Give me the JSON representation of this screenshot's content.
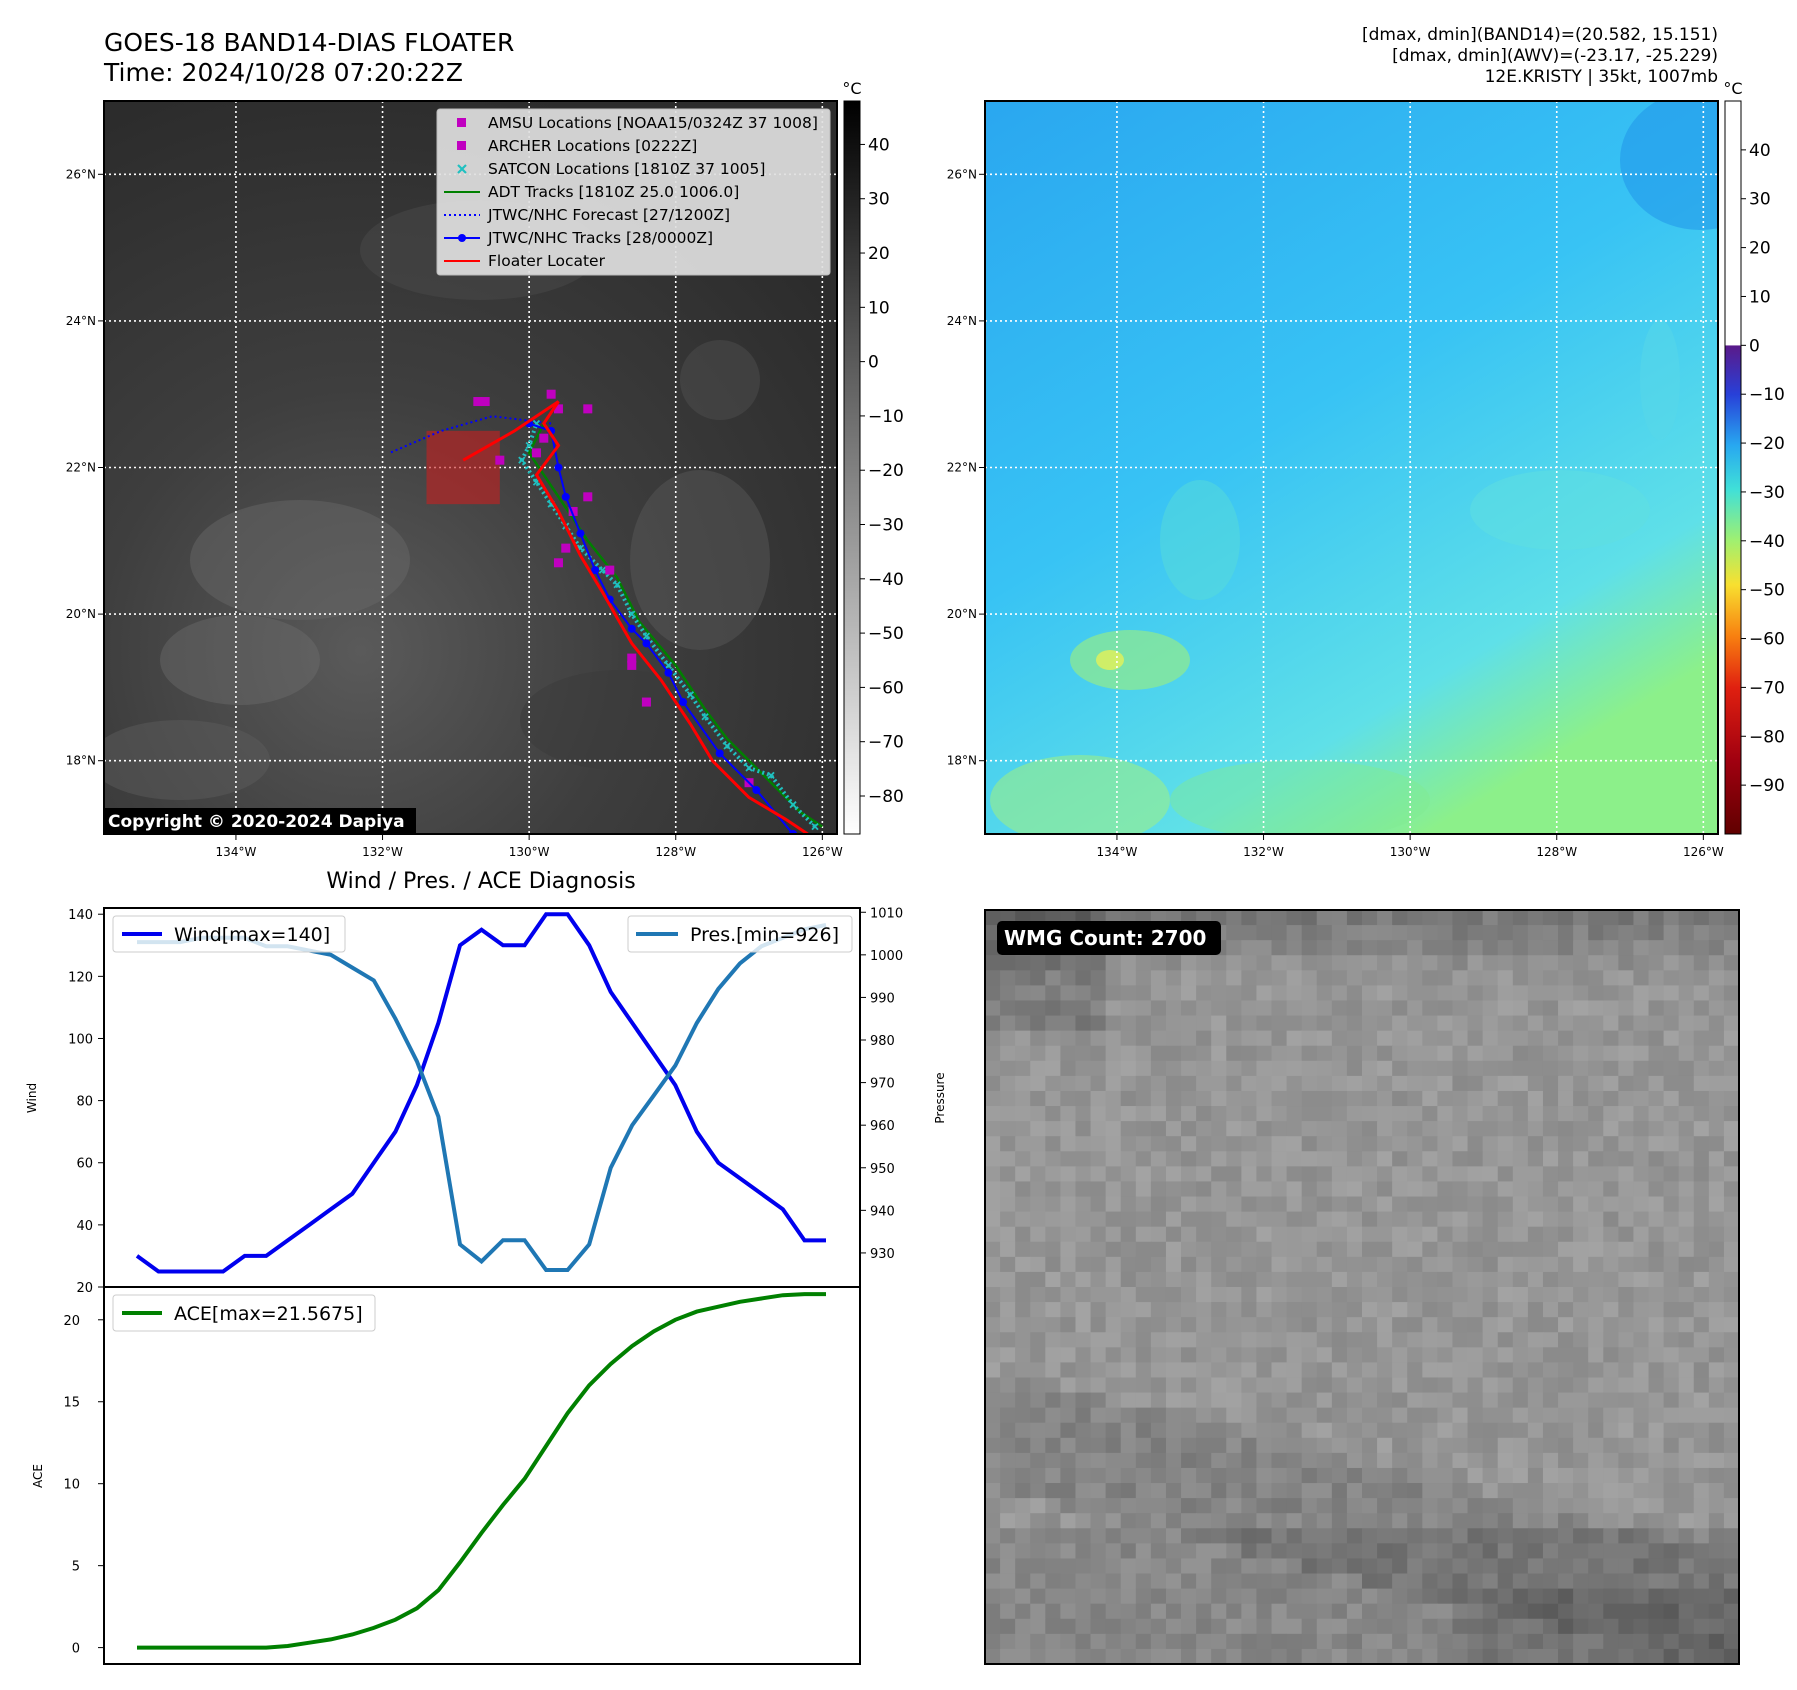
{
  "header": {
    "title_line1": "GOES-18 BAND14-DIAS FLOATER",
    "title_line2": "Time: 2024/10/28 07:20:22Z",
    "info_line1": "[dmax, dmin](BAND14)=(20.582, 15.151)",
    "info_line2": "[dmax, dmin](AWV)=(-23.17, -25.229)",
    "info_line3": "12E.KRISTY | 35kt, 1007mb"
  },
  "map": {
    "lon_ticks": [
      "134°W",
      "132°W",
      "130°W",
      "128°W",
      "126°W"
    ],
    "lon_values": [
      -134,
      -132,
      -130,
      -128,
      -126
    ],
    "lat_ticks": [
      "26°N",
      "24°N",
      "22°N",
      "20°N",
      "18°N"
    ],
    "lat_values": [
      26,
      24,
      22,
      20,
      18
    ],
    "lon_range": [
      -135.8,
      -125.8
    ],
    "lat_range": [
      17.0,
      27.0
    ],
    "copyright": "Copyright © 2020-2024 Dapiya"
  },
  "colorbar_ir": {
    "unit": "°C",
    "ticks": [
      "40",
      "30",
      "20",
      "10",
      "0",
      "−10",
      "−20",
      "−30",
      "−40",
      "−50",
      "−60",
      "−70",
      "−80"
    ],
    "tick_values": [
      40,
      30,
      20,
      10,
      0,
      -10,
      -20,
      -30,
      -40,
      -50,
      -60,
      -70,
      -80
    ],
    "range": [
      -87,
      48
    ]
  },
  "colorbar_wv": {
    "unit": "°C",
    "ticks": [
      "40",
      "30",
      "20",
      "10",
      "0",
      "−10",
      "−20",
      "−30",
      "−40",
      "−50",
      "−60",
      "−70",
      "−80",
      "−90"
    ],
    "tick_values": [
      40,
      30,
      20,
      10,
      0,
      -10,
      -20,
      -30,
      -40,
      -50,
      -60,
      -70,
      -80,
      -90
    ],
    "range": [
      -100,
      50
    ]
  },
  "legend": {
    "items": [
      {
        "label": "AMSU Locations [NOAA15/0324Z 37 1008]",
        "kind": "square",
        "color": "#c000c0"
      },
      {
        "label": "ARCHER Locations [0222Z]",
        "kind": "square",
        "color": "#c000c0"
      },
      {
        "label": "SATCON Locations [1810Z 37 1005]",
        "kind": "x",
        "color": "#20c0c0"
      },
      {
        "label": "ADT Tracks [1810Z 25.0 1006.0]",
        "kind": "line",
        "color": "#008000"
      },
      {
        "label": "JTWC/NHC Forecast [27/1200Z]",
        "kind": "dotted",
        "color": "#0000ff"
      },
      {
        "label": "JTWC/NHC Tracks [28/0000Z]",
        "kind": "line-dot",
        "color": "#0000ff"
      },
      {
        "label": "Floater Locater",
        "kind": "line",
        "color": "#ff0000"
      }
    ]
  },
  "tracks": {
    "jtwc_track": [
      [
        -126.4,
        17.0
      ],
      [
        -126.9,
        17.6
      ],
      [
        -127.4,
        18.1
      ],
      [
        -127.9,
        18.8
      ],
      [
        -128.1,
        19.2
      ],
      [
        -128.4,
        19.6
      ],
      [
        -128.6,
        19.8
      ],
      [
        -128.9,
        20.2
      ],
      [
        -129.1,
        20.6
      ],
      [
        -129.3,
        21.1
      ],
      [
        -129.5,
        21.6
      ],
      [
        -129.6,
        22.0
      ],
      [
        -129.7,
        22.5
      ],
      [
        -130.0,
        22.6
      ]
    ],
    "jtwc_forecast": [
      [
        -129.7,
        22.6
      ],
      [
        -130.5,
        22.7
      ],
      [
        -131.2,
        22.5
      ],
      [
        -131.9,
        22.2
      ]
    ],
    "floater_track": [
      [
        -126.2,
        17.0
      ],
      [
        -126.5,
        17.2
      ],
      [
        -127.0,
        17.5
      ],
      [
        -127.5,
        18.0
      ],
      [
        -127.8,
        18.5
      ],
      [
        -128.2,
        19.1
      ],
      [
        -128.6,
        19.6
      ],
      [
        -129.0,
        20.3
      ],
      [
        -129.3,
        20.8
      ],
      [
        -129.6,
        21.4
      ],
      [
        -129.9,
        21.9
      ],
      [
        -129.6,
        22.3
      ],
      [
        -129.8,
        22.6
      ],
      [
        -129.6,
        22.9
      ],
      [
        -130.2,
        22.5
      ],
      [
        -130.9,
        22.1
      ]
    ],
    "adt_track": [
      [
        -126.0,
        17.1
      ],
      [
        -126.3,
        17.3
      ],
      [
        -126.8,
        17.8
      ],
      [
        -127.3,
        18.3
      ],
      [
        -127.6,
        18.7
      ],
      [
        -128.0,
        19.3
      ],
      [
        -128.5,
        19.9
      ],
      [
        -128.8,
        20.5
      ],
      [
        -129.2,
        21.0
      ],
      [
        -129.6,
        21.6
      ],
      [
        -130.0,
        22.2
      ],
      [
        -129.8,
        22.6
      ]
    ],
    "satcon_points": [
      [
        -126.1,
        17.1
      ],
      [
        -126.4,
        17.4
      ],
      [
        -126.7,
        17.8
      ],
      [
        -127.0,
        17.9
      ],
      [
        -127.3,
        18.2
      ],
      [
        -127.6,
        18.6
      ],
      [
        -127.8,
        18.9
      ],
      [
        -128.1,
        19.3
      ],
      [
        -128.4,
        19.7
      ],
      [
        -128.6,
        20.0
      ],
      [
        -128.8,
        20.4
      ],
      [
        -129.0,
        20.6
      ],
      [
        -129.3,
        20.9
      ],
      [
        -129.5,
        21.2
      ],
      [
        -129.7,
        21.5
      ],
      [
        -129.9,
        21.8
      ],
      [
        -130.1,
        22.1
      ],
      [
        -130.0,
        22.3
      ],
      [
        -129.9,
        22.6
      ]
    ],
    "archer_points": [
      [
        -130.7,
        22.9
      ],
      [
        -130.6,
        22.9
      ],
      [
        -129.7,
        23.0
      ],
      [
        -129.6,
        22.8
      ],
      [
        -129.2,
        22.8
      ],
      [
        -129.8,
        22.4
      ],
      [
        -129.9,
        22.2
      ],
      [
        -130.4,
        22.1
      ],
      [
        -129.4,
        21.4
      ],
      [
        -129.2,
        21.6
      ],
      [
        -129.6,
        20.7
      ],
      [
        -129.5,
        20.9
      ],
      [
        -128.9,
        20.6
      ],
      [
        -128.6,
        19.4
      ],
      [
        -128.6,
        19.3
      ],
      [
        -128.4,
        18.8
      ],
      [
        -127.0,
        17.7
      ]
    ],
    "floater_box": {
      "lon": [
        -131.4,
        -130.4
      ],
      "lat": [
        21.5,
        22.5
      ]
    }
  },
  "diag": {
    "title": "Wind / Pres. / ACE Diagnosis",
    "wind_ylabel": "Wind",
    "pres_ylabel": "Pressure",
    "ace_ylabel": "ACE",
    "wind_legend": "Wind[max=140]",
    "pres_legend": "Pres.[min=926]",
    "ace_legend": "ACE[max=21.5675]",
    "wind_ticks": [
      20,
      40,
      60,
      80,
      100,
      120,
      140
    ],
    "pres_ticks": [
      930,
      940,
      950,
      960,
      970,
      980,
      990,
      1000,
      1010
    ],
    "ace_ticks": [
      0,
      5,
      10,
      15,
      20
    ],
    "wind_color": "#0000ee",
    "pres_color": "#1f77b4",
    "ace_color": "#008000"
  },
  "chart_data": [
    {
      "type": "line",
      "y_axis_left": "Wind",
      "y_axis_right": "Pressure",
      "ylim": [
        20,
        142
      ],
      "ylim_right": [
        922,
        1011
      ],
      "series": [
        {
          "name": "Wind[max=140]",
          "axis": "left",
          "values": [
            30,
            25,
            25,
            25,
            25,
            30,
            30,
            35,
            40,
            45,
            50,
            60,
            70,
            85,
            105,
            130,
            135,
            130,
            130,
            140,
            140,
            130,
            115,
            105,
            95,
            85,
            70,
            60,
            55,
            50,
            45,
            35,
            35
          ]
        },
        {
          "name": "Pres.[min=926]",
          "axis": "right",
          "values": [
            1003,
            1003,
            1003,
            1004,
            1004,
            1004,
            1002,
            1002,
            1001,
            1000,
            997,
            994,
            985,
            975,
            962,
            932,
            928,
            933,
            933,
            926,
            926,
            932,
            950,
            960,
            967,
            974,
            984,
            992,
            998,
            1002,
            1004,
            1006,
            1007
          ]
        }
      ]
    },
    {
      "type": "line",
      "y_axis_left": "ACE",
      "ylim": [
        -1,
        22
      ],
      "series": [
        {
          "name": "ACE[max=21.5675]",
          "values": [
            0,
            0,
            0,
            0,
            0,
            0,
            0,
            0.1,
            0.3,
            0.5,
            0.8,
            1.2,
            1.7,
            2.4,
            3.5,
            5.2,
            7.0,
            8.7,
            10.3,
            12.3,
            14.3,
            16.0,
            17.3,
            18.4,
            19.3,
            20.0,
            20.5,
            20.8,
            21.1,
            21.3,
            21.5,
            21.5675,
            21.5675
          ]
        }
      ]
    }
  ],
  "wmg": {
    "label": "WMG Count: 2700"
  }
}
